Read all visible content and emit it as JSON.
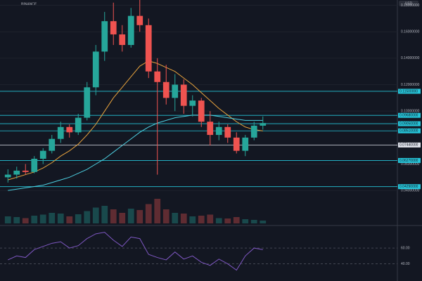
{
  "chart_data": [
    {
      "type": "candlestick",
      "exchange": "BINANCE",
      "currency": "USD",
      "open": [
        0.05,
        0.052,
        0.055,
        0.054,
        0.064,
        0.07,
        0.079,
        0.088,
        0.084,
        0.095,
        0.118,
        0.145,
        0.168,
        0.158,
        0.15,
        0.172,
        0.165,
        0.13,
        0.122,
        0.11,
        0.12,
        0.104,
        0.108,
        0.092,
        0.082,
        0.088,
        0.08,
        0.07,
        0.08,
        0.089
      ],
      "high": [
        0.056,
        0.058,
        0.06,
        0.066,
        0.072,
        0.082,
        0.092,
        0.09,
        0.098,
        0.122,
        0.15,
        0.175,
        0.182,
        0.165,
        0.178,
        0.185,
        0.17,
        0.14,
        0.135,
        0.128,
        0.124,
        0.112,
        0.11,
        0.1,
        0.092,
        0.09,
        0.084,
        0.082,
        0.092,
        0.096
      ],
      "low": [
        0.046,
        0.049,
        0.052,
        0.053,
        0.06,
        0.068,
        0.076,
        0.08,
        0.082,
        0.093,
        0.112,
        0.138,
        0.15,
        0.145,
        0.148,
        0.16,
        0.125,
        0.052,
        0.105,
        0.1,
        0.098,
        0.096,
        0.088,
        0.074,
        0.078,
        0.076,
        0.068,
        0.066,
        0.078,
        0.086
      ],
      "close": [
        0.052,
        0.055,
        0.054,
        0.064,
        0.07,
        0.079,
        0.088,
        0.084,
        0.095,
        0.118,
        0.145,
        0.168,
        0.158,
        0.15,
        0.172,
        0.165,
        0.13,
        0.122,
        0.11,
        0.12,
        0.104,
        0.108,
        0.092,
        0.082,
        0.088,
        0.08,
        0.07,
        0.08,
        0.089,
        0.091
      ],
      "volume": [
        20,
        18,
        15,
        22,
        25,
        30,
        28,
        20,
        26,
        35,
        45,
        50,
        40,
        30,
        42,
        38,
        55,
        70,
        40,
        30,
        28,
        20,
        22,
        25,
        15,
        14,
        18,
        12,
        10,
        8
      ],
      "moving_averages": [
        {
          "color": "#e8a33d",
          "values": [
            0.048,
            0.05,
            0.052,
            0.054,
            0.057,
            0.061,
            0.066,
            0.07,
            0.075,
            0.082,
            0.09,
            0.1,
            0.11,
            0.118,
            0.126,
            0.134,
            0.138,
            0.136,
            0.133,
            0.13,
            0.125,
            0.12,
            0.114,
            0.108,
            0.102,
            0.097,
            0.092,
            0.088,
            0.086,
            0.085
          ]
        },
        {
          "color": "#4dd0e1",
          "values": [
            0.04,
            0.041,
            0.042,
            0.043,
            0.044,
            0.046,
            0.048,
            0.05,
            0.053,
            0.056,
            0.06,
            0.064,
            0.069,
            0.074,
            0.079,
            0.084,
            0.088,
            0.091,
            0.093,
            0.095,
            0.096,
            0.097,
            0.097,
            0.097,
            0.096,
            0.095,
            0.094,
            0.093,
            0.093,
            0.093
          ]
        }
      ],
      "levels": [
        {
          "value": 0.115,
          "label": "0.11500000",
          "color": "#26c6da"
        },
        {
          "value": 0.0968,
          "label": "0.09680000",
          "color": "#26c6da"
        },
        {
          "value": 0.0905,
          "label": "0.09050000",
          "color": "#26c6da"
        },
        {
          "value": 0.0851,
          "label": "0.08510000",
          "color": "#26c6da"
        },
        {
          "value": 0.0744,
          "label": "0.07440000",
          "color": "#e0e3eb"
        },
        {
          "value": 0.0627,
          "label": "0.06270000",
          "color": "#26c6da"
        },
        {
          "value": 0.0429,
          "label": "0.04290000",
          "color": "#26c6da"
        }
      ],
      "ylim": [
        0.03,
        0.184
      ],
      "yticks": [
        {
          "value": 0.18,
          "label": "0.18000000"
        },
        {
          "value": 0.16,
          "label": "0.16000000"
        },
        {
          "value": 0.14,
          "label": "0.14000000"
        },
        {
          "value": 0.12,
          "label": "0.12000000"
        },
        {
          "value": 0.1,
          "label": "0.10000000"
        },
        {
          "value": 0.06,
          "label": "0.06000000"
        },
        {
          "value": 0.04,
          "label": "0.04000000"
        }
      ],
      "up_color": "#26a69a",
      "down_color": "#ef5350"
    },
    {
      "type": "line",
      "color": "#7e57c2",
      "values": [
        45,
        50,
        48,
        58,
        62,
        66,
        68,
        60,
        63,
        72,
        78,
        80,
        70,
        62,
        74,
        72,
        52,
        48,
        45,
        55,
        46,
        50,
        42,
        38,
        46,
        40,
        32,
        50,
        60,
        58
      ],
      "ylim": [
        20,
        85
      ],
      "yticks": [
        {
          "value": 60,
          "label": "60.00"
        },
        {
          "value": 40,
          "label": "40.00"
        }
      ]
    }
  ]
}
